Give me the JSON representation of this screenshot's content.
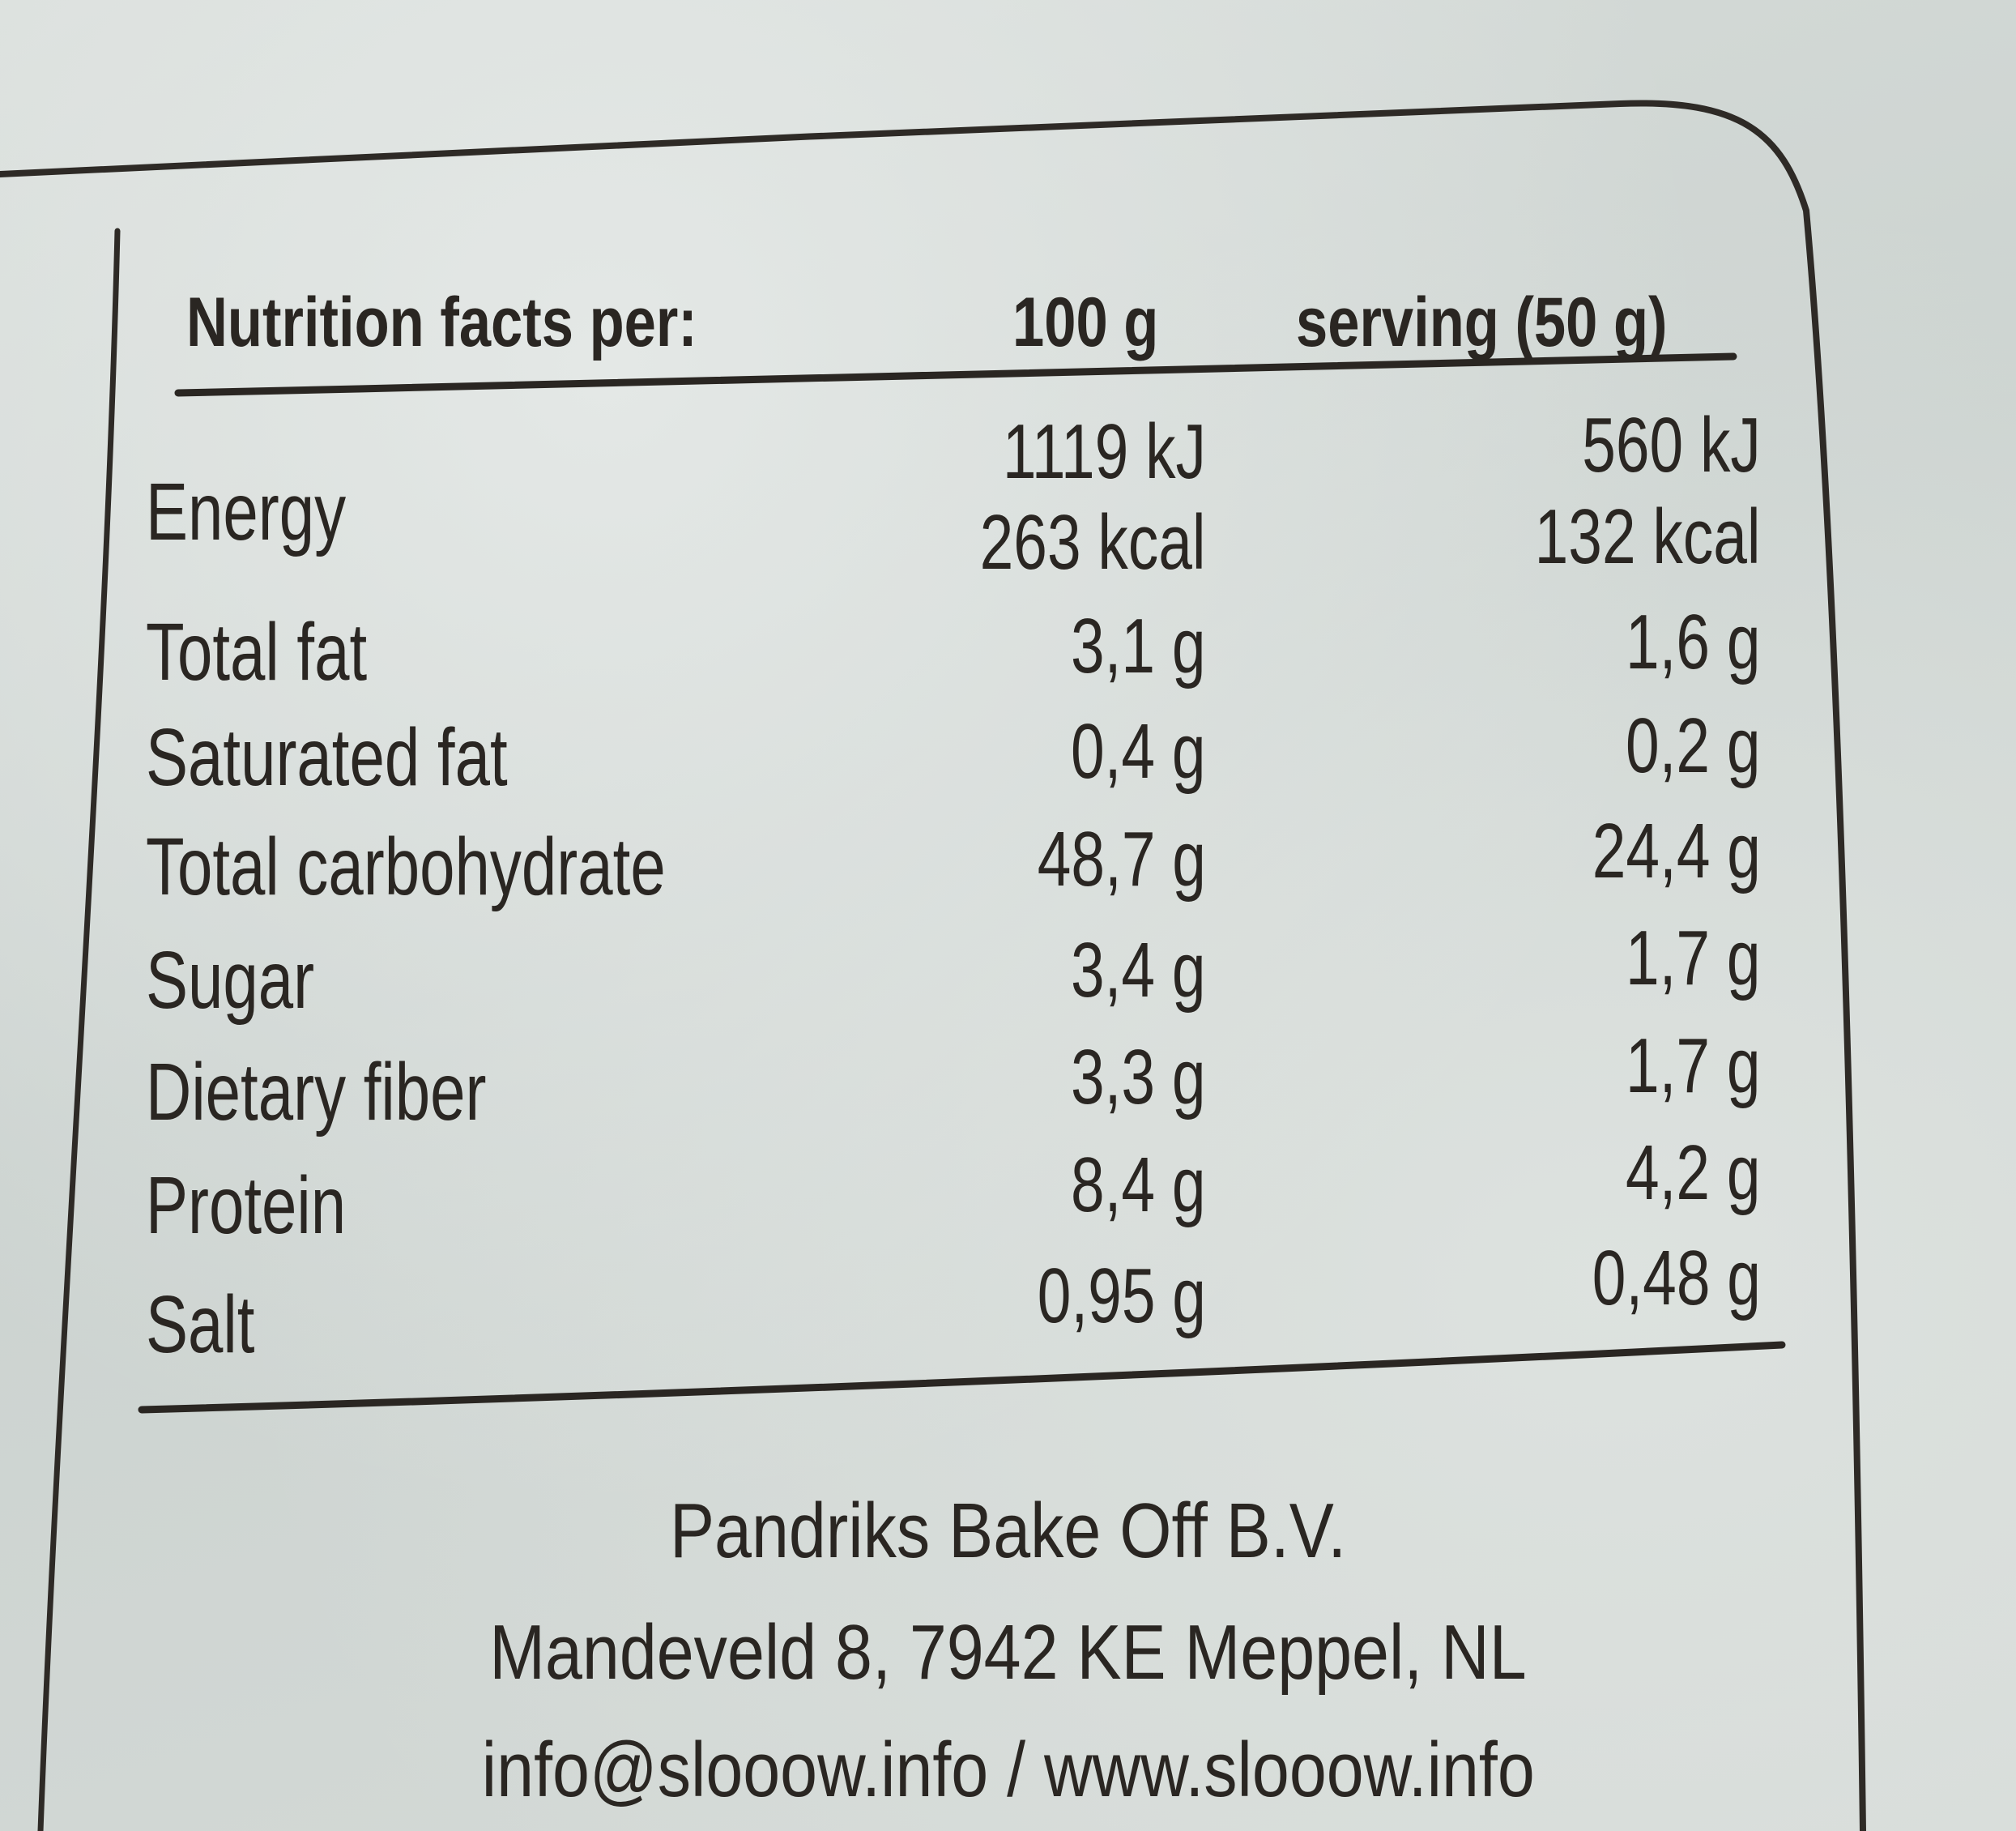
{
  "header": {
    "label": "Nutrition facts per:",
    "col_100g": "100 g",
    "col_serving": "serving (50 g)"
  },
  "energy": {
    "label": "Energy",
    "kj_100g": "1119 kJ",
    "kcal_100g": "263 kcal",
    "kj_serving": "560 kJ",
    "kcal_serving": "132 kcal"
  },
  "rows": [
    {
      "label": "Total fat",
      "per_100g": "3,1 g",
      "per_serving": "1,6 g"
    },
    {
      "label": "Saturated fat",
      "per_100g": "0,4 g",
      "per_serving": "0,2 g"
    },
    {
      "label": "Total carbohydrate",
      "per_100g": "48,7 g",
      "per_serving": "24,4 g"
    },
    {
      "label": "Sugar",
      "per_100g": "3,4 g",
      "per_serving": "1,7 g"
    },
    {
      "label": "Dietary fiber",
      "per_100g": "3,3 g",
      "per_serving": "1,7 g"
    },
    {
      "label": "Protein",
      "per_100g": "8,4 g",
      "per_serving": "4,2 g"
    },
    {
      "label": "Salt",
      "per_100g": "0,95 g",
      "per_serving": "0,48 g"
    }
  ],
  "footer": {
    "company": "Pandriks Bake Off B.V.",
    "address": "Mandeveld 8, 7942 KE Meppel, NL",
    "contact": "info@slooow.info / www.slooow.info"
  },
  "colors": {
    "paper": "#d4dad7",
    "ink": "#2a2622"
  }
}
